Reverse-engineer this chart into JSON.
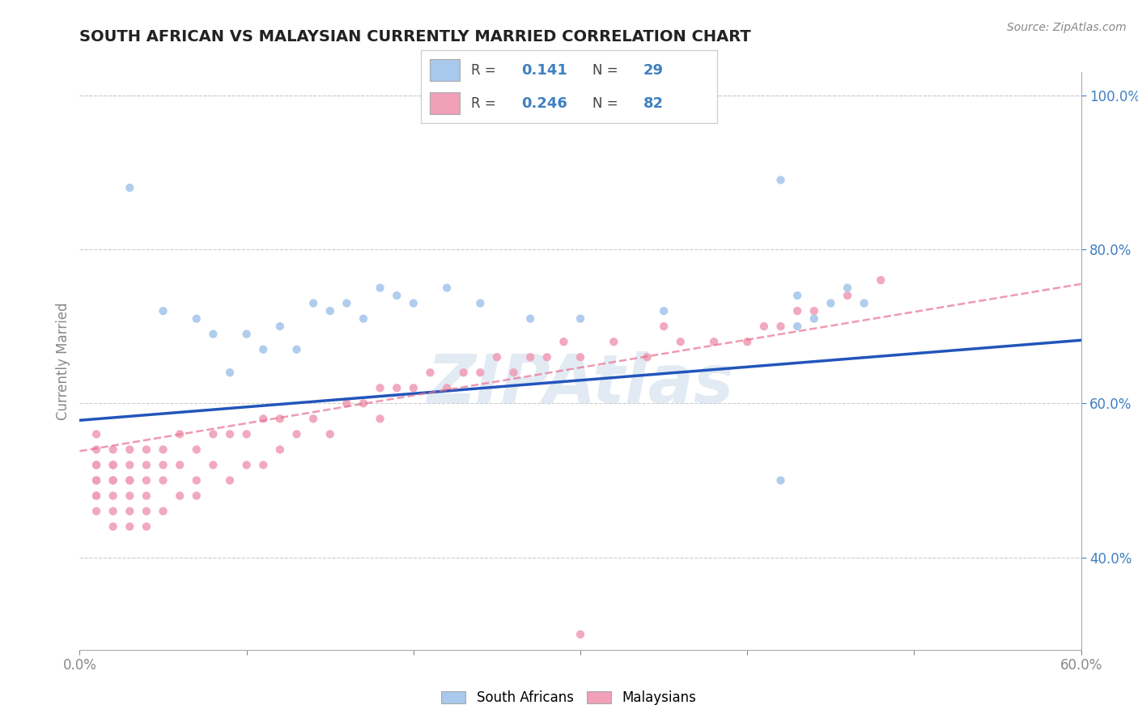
{
  "title": "SOUTH AFRICAN VS MALAYSIAN CURRENTLY MARRIED CORRELATION CHART",
  "source": "Source: ZipAtlas.com",
  "ylabel": "Currently Married",
  "xlim": [
    0.0,
    0.6
  ],
  "ylim": [
    0.28,
    1.03
  ],
  "xticks": [
    0.0,
    0.1,
    0.2,
    0.3,
    0.4,
    0.5,
    0.6
  ],
  "yticks_right": [
    0.4,
    0.6,
    0.8,
    1.0
  ],
  "yticklabels_right": [
    "40.0%",
    "60.0%",
    "80.0%",
    "100.0%"
  ],
  "blue_color": "#A8C8EC",
  "pink_color": "#F0A0B8",
  "blue_line_color": "#2255BB",
  "pink_line_color": "#E87090",
  "watermark": "ZIPAtlas",
  "blue_line_y0": 0.578,
  "blue_line_y1": 0.682,
  "pink_line_y0": 0.538,
  "pink_line_y1": 0.755,
  "south_african_x": [
    0.03,
    0.05,
    0.07,
    0.08,
    0.09,
    0.1,
    0.11,
    0.12,
    0.13,
    0.14,
    0.15,
    0.16,
    0.17,
    0.18,
    0.19,
    0.2,
    0.22,
    0.24,
    0.27,
    0.3,
    0.35,
    0.42,
    0.42,
    0.43,
    0.43,
    0.44,
    0.45,
    0.46,
    0.47
  ],
  "south_african_y": [
    0.88,
    0.72,
    0.71,
    0.69,
    0.64,
    0.69,
    0.67,
    0.7,
    0.67,
    0.73,
    0.72,
    0.73,
    0.71,
    0.75,
    0.74,
    0.73,
    0.75,
    0.73,
    0.71,
    0.71,
    0.72,
    0.89,
    0.5,
    0.7,
    0.74,
    0.71,
    0.73,
    0.75,
    0.73
  ],
  "malaysian_x": [
    0.01,
    0.01,
    0.01,
    0.01,
    0.01,
    0.01,
    0.01,
    0.01,
    0.01,
    0.02,
    0.02,
    0.02,
    0.02,
    0.02,
    0.02,
    0.02,
    0.02,
    0.03,
    0.03,
    0.03,
    0.03,
    0.03,
    0.03,
    0.03,
    0.04,
    0.04,
    0.04,
    0.04,
    0.04,
    0.04,
    0.05,
    0.05,
    0.05,
    0.05,
    0.06,
    0.06,
    0.06,
    0.07,
    0.07,
    0.07,
    0.08,
    0.08,
    0.09,
    0.09,
    0.1,
    0.1,
    0.11,
    0.11,
    0.12,
    0.12,
    0.13,
    0.14,
    0.15,
    0.16,
    0.17,
    0.18,
    0.18,
    0.19,
    0.2,
    0.21,
    0.22,
    0.23,
    0.24,
    0.25,
    0.26,
    0.27,
    0.28,
    0.29,
    0.3,
    0.32,
    0.34,
    0.35,
    0.36,
    0.38,
    0.4,
    0.41,
    0.42,
    0.43,
    0.44,
    0.46,
    0.48,
    0.3
  ],
  "malaysian_y": [
    0.48,
    0.5,
    0.52,
    0.54,
    0.56,
    0.5,
    0.46,
    0.52,
    0.48,
    0.46,
    0.48,
    0.5,
    0.52,
    0.54,
    0.44,
    0.5,
    0.52,
    0.44,
    0.46,
    0.48,
    0.5,
    0.52,
    0.54,
    0.5,
    0.44,
    0.46,
    0.5,
    0.52,
    0.48,
    0.54,
    0.46,
    0.5,
    0.54,
    0.52,
    0.48,
    0.52,
    0.56,
    0.5,
    0.54,
    0.48,
    0.52,
    0.56,
    0.5,
    0.56,
    0.52,
    0.56,
    0.52,
    0.58,
    0.54,
    0.58,
    0.56,
    0.58,
    0.56,
    0.6,
    0.6,
    0.62,
    0.58,
    0.62,
    0.62,
    0.64,
    0.62,
    0.64,
    0.64,
    0.66,
    0.64,
    0.66,
    0.66,
    0.68,
    0.66,
    0.68,
    0.66,
    0.7,
    0.68,
    0.68,
    0.68,
    0.7,
    0.7,
    0.72,
    0.72,
    0.74,
    0.76,
    0.3
  ]
}
